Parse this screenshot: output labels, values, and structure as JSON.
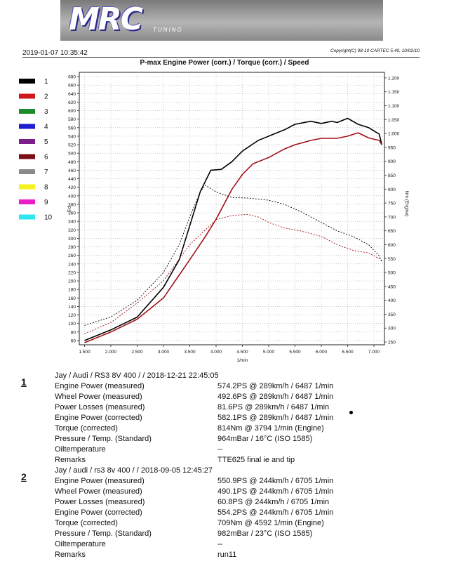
{
  "header": {
    "logo": "MRC",
    "logo_sub": "TUNING",
    "datetime": "2019-01-07 10:35:42",
    "copyright": "Copyright(C) 98-10 CARTEC 5.40, 10/02/10",
    "title": "P-max Engine Power (corr.) / Torque (corr.) / Speed"
  },
  "legend": [
    {
      "label": "1",
      "color": "#000000"
    },
    {
      "label": "2",
      "color": "#d0181c"
    },
    {
      "label": "3",
      "color": "#1f8a2a"
    },
    {
      "label": "4",
      "color": "#1c1cd0"
    },
    {
      "label": "5",
      "color": "#7a1f8a"
    },
    {
      "label": "6",
      "color": "#7a0e14"
    },
    {
      "label": "7",
      "color": "#8a8a8a"
    },
    {
      "label": "8",
      "color": "#f5f21e"
    },
    {
      "label": "9",
      "color": "#ea1ec6"
    },
    {
      "label": "10",
      "color": "#2ee6ee"
    }
  ],
  "chart_data": {
    "type": "line",
    "title": "P-max Engine Power (corr.) / Torque (corr.) / Speed",
    "xlabel": "1/min",
    "ylabel_left": "PS",
    "ylabel_right": "Nm (Engine)",
    "xlim": [
      1400,
      7200
    ],
    "ylim_left": [
      50,
      690
    ],
    "ylim_right": [
      240,
      1220
    ],
    "x_ticks": [
      "1.500",
      "2.000",
      "2.500",
      "3.000",
      "3.500",
      "4.000",
      "4.500",
      "5.000",
      "5.500",
      "6.000",
      "6.500",
      "7.000"
    ],
    "y_ticks_left": [
      "60",
      "80",
      "100",
      "120",
      "140",
      "160",
      "180",
      "200",
      "220",
      "240",
      "260",
      "280",
      "300",
      "320",
      "340",
      "360",
      "380",
      "400",
      "420",
      "440",
      "460",
      "480",
      "500",
      "520",
      "540",
      "560",
      "580",
      "600",
      "620",
      "640",
      "660",
      "680"
    ],
    "y_ticks_right": [
      "250",
      "300",
      "350",
      "400",
      "450",
      "500",
      "550",
      "600",
      "650",
      "700",
      "750",
      "800",
      "850",
      "900",
      "950",
      "1.000",
      "1.050",
      "1.100",
      "1.150",
      "1.200"
    ],
    "grid": true,
    "series": [
      {
        "name": "1",
        "kind": "power",
        "axis": "left",
        "color": "#000000",
        "dash": false,
        "x": [
          1500,
          2000,
          2500,
          3000,
          3300,
          3500,
          3700,
          3900,
          4100,
          4300,
          4500,
          4800,
          5000,
          5300,
          5500,
          5800,
          6000,
          6200,
          6300,
          6500,
          6700,
          6900,
          7100,
          7150
        ],
        "y": [
          60,
          85,
          115,
          185,
          250,
          330,
          410,
          460,
          462,
          480,
          505,
          530,
          540,
          555,
          568,
          575,
          570,
          575,
          572,
          582,
          568,
          560,
          545,
          520
        ]
      },
      {
        "name": "2",
        "kind": "power",
        "axis": "left",
        "color": "#a01018",
        "dash": false,
        "x": [
          1500,
          2000,
          2500,
          3000,
          3500,
          3800,
          4000,
          4300,
          4500,
          4700,
          5000,
          5300,
          5500,
          5800,
          6000,
          6300,
          6500,
          6700,
          6900,
          7100,
          7150
        ],
        "y": [
          55,
          80,
          110,
          160,
          250,
          305,
          345,
          415,
          450,
          475,
          490,
          510,
          520,
          530,
          535,
          535,
          540,
          548,
          536,
          530,
          520
        ]
      },
      {
        "name": "1",
        "kind": "torque",
        "axis": "right",
        "color": "#000000",
        "dash": true,
        "x": [
          1500,
          2000,
          2500,
          3000,
          3300,
          3500,
          3700,
          3794,
          4000,
          4300,
          4600,
          5000,
          5300,
          5600,
          6000,
          6300,
          6600,
          6900,
          7100,
          7150
        ],
        "y": [
          310,
          340,
          400,
          500,
          600,
          700,
          790,
          814,
          790,
          770,
          768,
          760,
          745,
          720,
          680,
          650,
          630,
          600,
          560,
          540
        ]
      },
      {
        "name": "2",
        "kind": "torque",
        "axis": "right",
        "color": "#a01018",
        "dash": true,
        "x": [
          1500,
          2000,
          2500,
          3000,
          3500,
          4000,
          4300,
          4592,
          4800,
          5000,
          5300,
          5600,
          6000,
          6300,
          6600,
          6900,
          7100,
          7150
        ],
        "y": [
          280,
          320,
          390,
          470,
          600,
          690,
          705,
          709,
          700,
          680,
          660,
          650,
          630,
          600,
          580,
          570,
          550,
          540
        ]
      }
    ]
  },
  "runs": [
    {
      "index": "1",
      "header": "Jay / Audi / RS3 8V 400 /  / 2018-12-21 22:45:05",
      "rows": [
        {
          "label": "Engine Power (measured)",
          "value": "574.2PS @ 289km/h / 6487 1/min"
        },
        {
          "label": "Wheel Power (measured)",
          "value": "492.6PS @ 289km/h / 6487 1/min"
        },
        {
          "label": "Power Losses (measured)",
          "value": "81.6PS @ 289km/h / 6487 1/min"
        },
        {
          "label": "Engine Power (corrected)",
          "value": "582.1PS @ 289km/h / 6487 1/min"
        },
        {
          "label": "Torque (corrected)",
          "value": "814Nm @ 3794 1/min (Engine)"
        },
        {
          "label": "Pressure / Temp. (Standard)",
          "value": "964mBar / 16°C    (ISO 1585)"
        },
        {
          "label": "Oiltemperature",
          "value": "--"
        },
        {
          "label": "Remarks",
          "value": "TTE625 final ie and tip"
        }
      ]
    },
    {
      "index": "2",
      "header": "Jay / audi / rs3 8v 400 /  / 2018-09-05 12:45:27",
      "rows": [
        {
          "label": "Engine Power (measured)",
          "value": "550.9PS @ 244km/h / 6705 1/min"
        },
        {
          "label": "Wheel Power (measured)",
          "value": "490.1PS @ 244km/h / 6705 1/min"
        },
        {
          "label": "Power Losses (measured)",
          "value": "60.8PS @ 244km/h / 6705 1/min"
        },
        {
          "label": "Engine Power (corrected)",
          "value": "554.2PS @ 244km/h / 6705 1/min"
        },
        {
          "label": "Torque (corrected)",
          "value": "709Nm @ 4592 1/min (Engine)"
        },
        {
          "label": "Pressure / Temp. (Standard)",
          "value": "982mBar / 23°C    (ISO 1585)"
        },
        {
          "label": "Oiltemperature",
          "value": "--"
        },
        {
          "label": "Remarks",
          "value": "run11"
        }
      ]
    }
  ]
}
